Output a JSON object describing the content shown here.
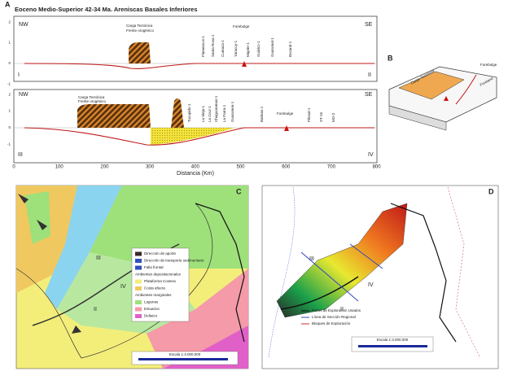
{
  "panel_a": {
    "label": "A",
    "title": "Eoceno Medio-Superior 42-34 Ma. Areniscas Basales Inferiores",
    "section_1": {
      "left": "NW",
      "right": "SE",
      "start": "I",
      "end": "II",
      "load": [
        "Carga Tectónica",
        "Frente orogénico"
      ],
      "forebulge": "Forebulge",
      "wells": [
        "Flamencos-1",
        "Santa Rosa-1",
        "Cumaca-1",
        "Yaracuy-1",
        "Mapire-1",
        "Guárico-1",
        "Guarumal-1",
        "Bucaral-1"
      ],
      "yticks": [
        "2",
        "1",
        "0",
        "-1"
      ]
    },
    "section_2": {
      "left": "NW",
      "right": "SE",
      "start": "III",
      "end": "IV",
      "load": [
        "Carga Tectónica",
        "Frente orogénico"
      ],
      "forebulge": "Forebulge",
      "wells": [
        "Tucupido-1",
        "La Vieja-1",
        "La Cruz-1",
        "Chaguaramas-1",
        "La Parra-1",
        "Guarumen-1",
        "Barinas-1",
        "Pilonal-1",
        "ST-16",
        "MO-2"
      ],
      "yticks": [
        "2",
        "1",
        "0",
        "-1"
      ]
    },
    "xticks": [
      "0",
      "100",
      "200",
      "300",
      "400",
      "500",
      "600",
      "700",
      "800"
    ],
    "xlabel": "Distancia (Km)"
  },
  "panel_b": {
    "label": "B",
    "forebulge": "Forebulge",
    "load": "Carga Tectónica",
    "basin": "Foreland"
  },
  "panel_c": {
    "label": "C",
    "sections": [
      "III",
      "IV",
      "II"
    ],
    "legend": [
      "Dirección de aporte",
      "Dirección de transporte sedimentario",
      "Falla frontal",
      "Ambientes depositacionales",
      "Plataforma Costera",
      "Costa afuera",
      "Ambientes marginales",
      "Lagunas",
      "Estuarios",
      "Deltaico"
    ],
    "scale": "Escala 1:3.000.000"
  },
  "panel_d": {
    "label": "D",
    "sections": [
      "III",
      "IV",
      "II"
    ],
    "legend": [
      "Pozos de Exploración Usados",
      "Línea de Sección Regional",
      "Bloques de Exploración"
    ],
    "scale": "Escala 1:3.000.000"
  }
}
